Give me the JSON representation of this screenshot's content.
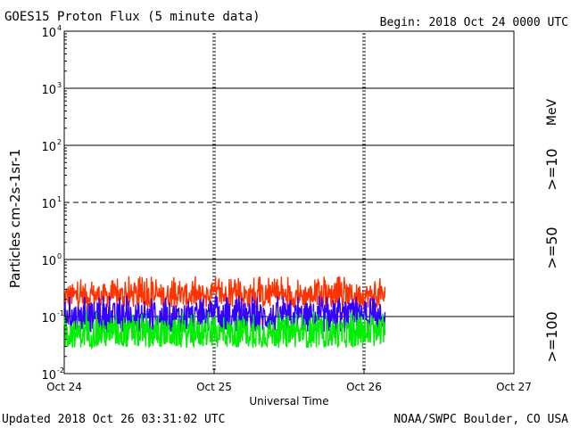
{
  "header": {
    "title": "GOES15 Proton Flux (5 minute data)",
    "begin": "Begin: 2018 Oct 24 0000 UTC"
  },
  "footer": {
    "updated": "Updated 2018 Oct 26 03:31:02 UTC",
    "credit": "NOAA/SWPC Boulder, CO USA"
  },
  "legend": {
    "unit": "MeV",
    "items": [
      {
        "label": ">=10",
        "color": "#ff3300"
      },
      {
        "label": ">=50",
        "color": "#3300ff"
      },
      {
        "label": ">=100",
        "color": "#00ee00"
      }
    ]
  },
  "chart_data": {
    "type": "line",
    "title": "GOES15 Proton Flux (5 minute data)",
    "xlabel": "Universal Time",
    "ylabel": "Particles cm-2s-1sr-1",
    "yscale": "log",
    "ylim_exponents": [
      -2,
      4
    ],
    "ytick_exponents": [
      -2,
      -1,
      0,
      1,
      2,
      3,
      4
    ],
    "ytick_base": "10",
    "dashed_gridline_exponent": 1,
    "x_days": [
      0,
      1,
      2,
      3
    ],
    "x_tick_labels": [
      "Oct 24",
      "Oct 25",
      "Oct 26",
      "Oct 27"
    ],
    "data_end_day": 2.14,
    "series": [
      {
        "name": ">=10 MeV",
        "color": "#ff3300",
        "log_range": [
          -0.85,
          -0.42
        ],
        "noise": 0.13
      },
      {
        "name": ">=50 MeV",
        "color": "#3300ff",
        "log_range": [
          -1.28,
          -0.75
        ],
        "noise": 0.12
      },
      {
        "name": ">=100 MeV",
        "color": "#00ee00",
        "log_range": [
          -1.55,
          -1.05
        ],
        "noise": 0.14
      }
    ]
  }
}
